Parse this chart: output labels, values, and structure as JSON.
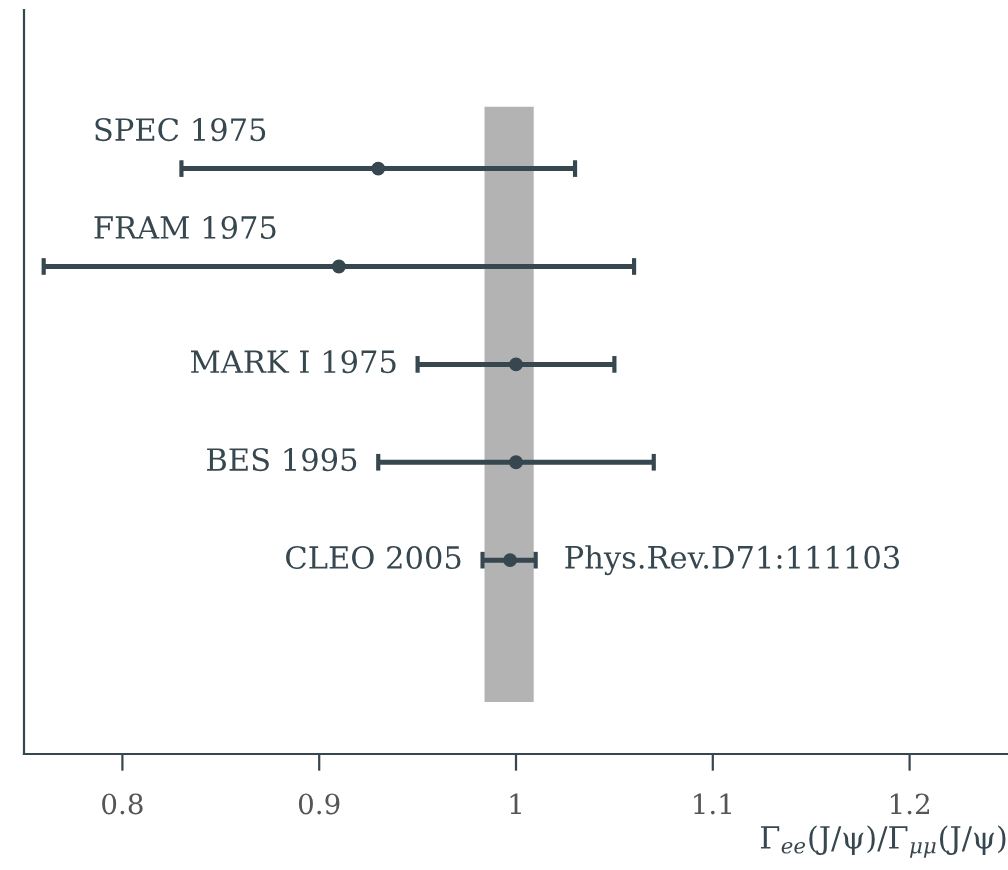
{
  "chart_data": {
    "type": "scatter",
    "orientation": "horizontal",
    "categories": [
      "SPEC 1975",
      "FRAM 1975",
      "MARK I 1975",
      "BES 1995",
      "CLEO 2005"
    ],
    "values": [
      0.93,
      0.91,
      1.0,
      1.0,
      0.997
    ],
    "errors": [
      [
        0.83,
        1.03
      ],
      [
        0.76,
        1.06
      ],
      [
        0.95,
        1.05
      ],
      [
        0.93,
        1.07
      ],
      [
        0.983,
        1.01
      ]
    ],
    "color": "#37474f",
    "marker": "circle",
    "xlim": [
      0.75,
      1.25
    ],
    "xticks": [
      0.8,
      0.9,
      1,
      1.1,
      1.2
    ],
    "xlabel": "Γ$_{ee}$(J/ψ)/Γ$_{μμ}$(J/ψ)",
    "bands": [
      {
        "axis": "x",
        "from": 0.984,
        "to": 1.009,
        "color": "#b3b3b3"
      }
    ],
    "annotations": [
      "Phys.Rev.D71:111103"
    ],
    "grid": false,
    "legend": false
  }
}
